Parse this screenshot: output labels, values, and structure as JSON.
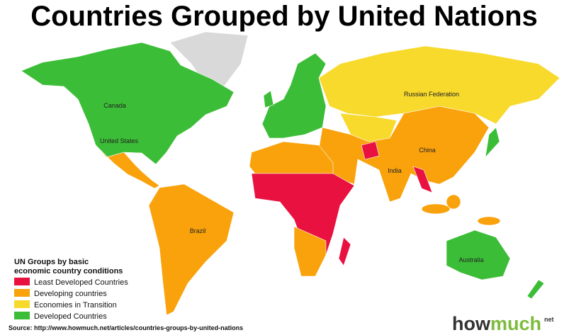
{
  "title": "Countries Grouped by United Nations",
  "map": {
    "labels": [
      "Canada",
      "United States",
      "Brazil",
      "Russian Federation",
      "China",
      "India",
      "Australia"
    ]
  },
  "legend": {
    "title_lines": [
      "UN Groups by basic",
      "economic country conditions"
    ],
    "items": [
      {
        "label": "Least Developed Countries",
        "color": "#e8113f"
      },
      {
        "label": "Developing countries",
        "color": "#f9a20c"
      },
      {
        "label": "Economies in Transition",
        "color": "#f7da2c"
      },
      {
        "label": "Developed Countries",
        "color": "#3cbd37"
      }
    ]
  },
  "source": "Source: http://www.howmuch.net/articles/countries-groups-by-united-nations",
  "logo": {
    "parts": [
      "how",
      "much"
    ],
    "suffix": "net"
  }
}
